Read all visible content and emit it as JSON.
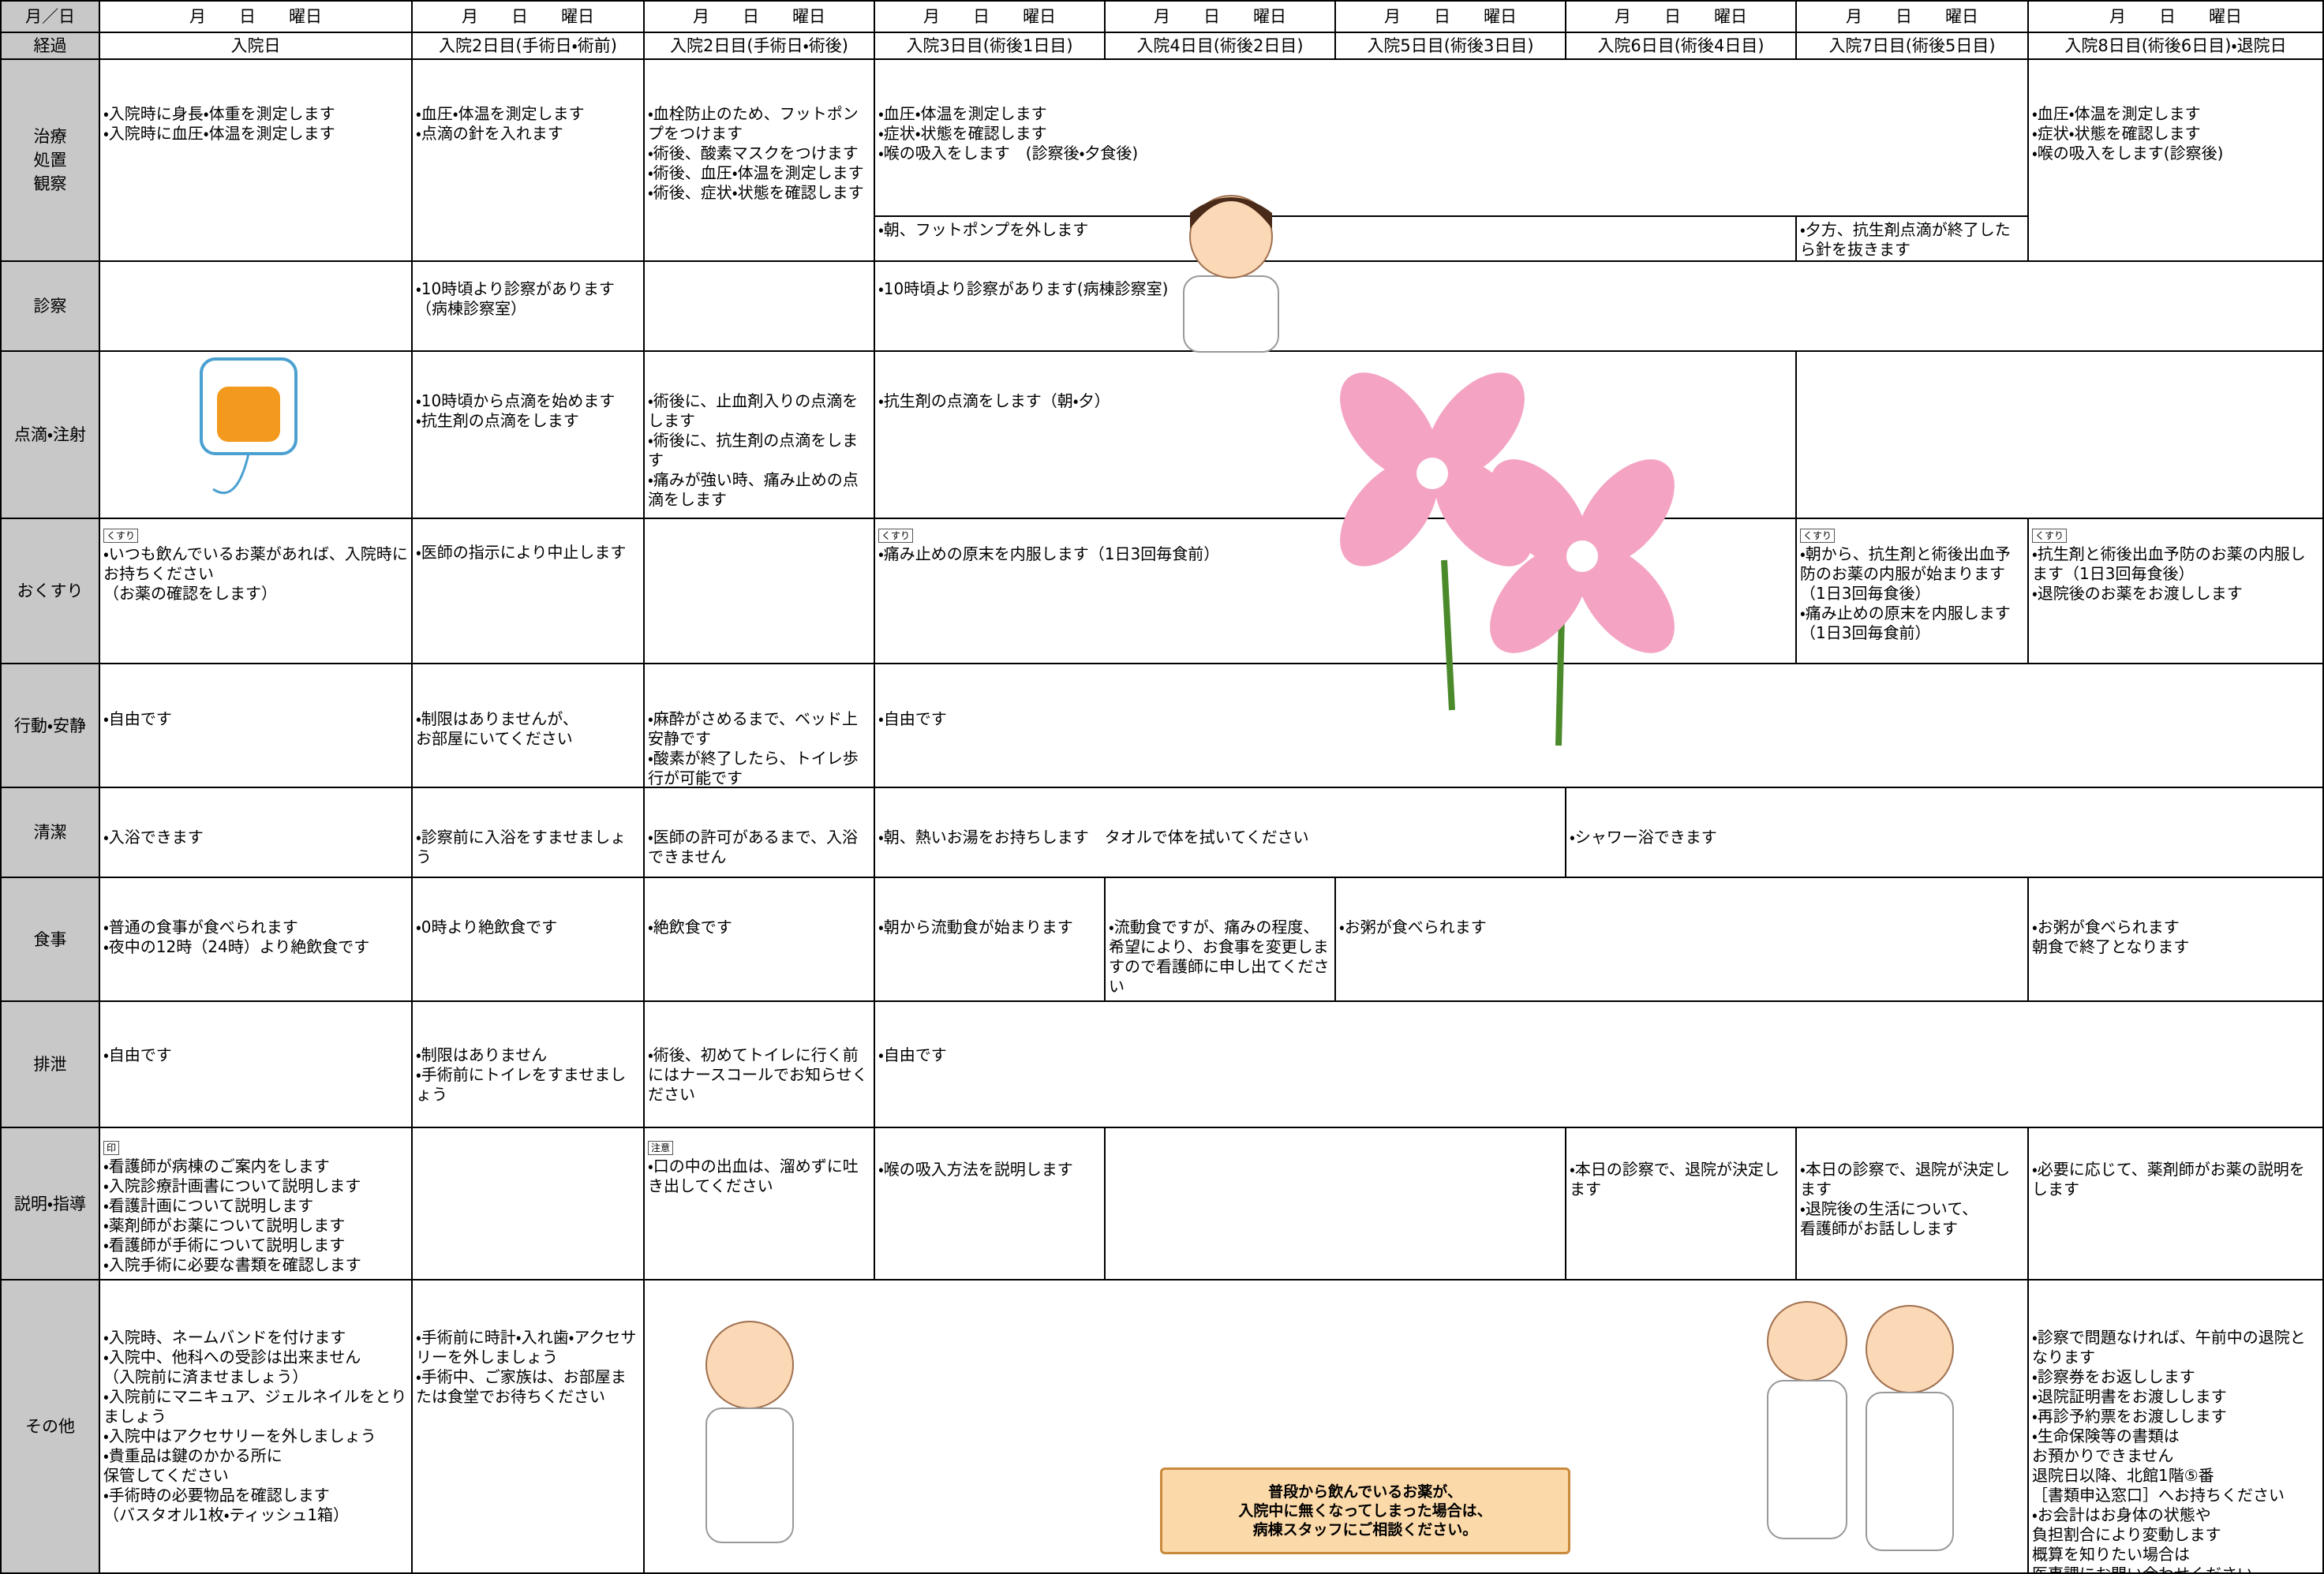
{
  "header": {
    "corner": "月／日",
    "dates": [
      "月　　日　　曜日",
      "月　　日　　曜日",
      "月　　日　　曜日",
      "月　　日　　曜日",
      "月　　日　　曜日",
      "月　　日　　曜日",
      "月　　日　　曜日",
      "月　　日　　曜日",
      "月　　日　　曜日"
    ],
    "progress_label": "経過",
    "days": [
      "入院日",
      "入院2日目(手術日・術前)",
      "入院2日目(手術日・術後)",
      "入院3日目(術後1日目)",
      "入院4日目(術後2日目)",
      "入院5日目(術後3日目)",
      "入院6日目(術後4日目)",
      "入院7日目(術後5日目)",
      "入院8日目(術後6日目)・退院日"
    ]
  },
  "rows": [
    {
      "label": "治療\n処置\n観察",
      "cells": [
        {
          "items": [
            "・入院時に身長・体重を測定します",
            "・入院時に血圧・体温を測定します"
          ]
        },
        {
          "items": [
            "・血圧・体温を測定します",
            "・点滴の針を入れます"
          ]
        },
        {
          "items": [
            "・血栓防止のため、フットポンプをつけます",
            "・術後、酸素マスクをつけます",
            "・術後、血圧・体温を測定します",
            "・術後、症状・状態を確認します"
          ]
        },
        {
          "items": [
            "・血圧・体温を測定します",
            "・症状・状態を確認します",
            "・喉の吸入をします　(診察後・夕食後)"
          ]
        },
        {
          "items": [
            "・朝、フットポンプを外します"
          ]
        },
        {
          "items": [
            "・夕方、抗生剤点滴が終了したら針を抜きます"
          ]
        },
        {
          "items": [
            "・血圧・体温を測定します",
            "・症状・状態を確認します",
            "・喉の吸入をします(診察後)"
          ]
        }
      ]
    },
    {
      "label": "診察",
      "cells": [
        {
          "items": []
        },
        {
          "items": [
            "・10時頃より診察があります",
            "（病棟診察室）"
          ]
        },
        {
          "items": []
        },
        {
          "items": [
            "・10時頃より診察があります(病棟診察室)"
          ]
        }
      ]
    },
    {
      "label": "点滴・注射",
      "cells": [
        {
          "items": []
        },
        {
          "items": [
            "・10時頃から点滴を始めます",
            "・抗生剤の点滴をします"
          ]
        },
        {
          "items": [
            "・術後に、止血剤入りの点滴をします",
            "・術後に、抗生剤の点滴をします",
            "・痛みが強い時、痛み止めの点滴をします"
          ]
        },
        {
          "items": [
            "・抗生剤の点滴をします（朝・夕）"
          ]
        },
        {
          "items": []
        }
      ]
    },
    {
      "label": "おくすり",
      "cells": [
        {
          "icon_label": "くすり",
          "items": [
            "・いつも飲んでいるお薬があれば、入院時にお持ちください",
            "（お薬の確認をします）"
          ]
        },
        {
          "items": [
            "・医師の指示により中止します"
          ]
        },
        {
          "items": []
        },
        {
          "icon_label": "くすり",
          "items": [
            "・痛み止めの原末を内服します（1日3回毎食前）"
          ]
        },
        {
          "icon_label": "くすり",
          "items": [
            "・朝から、抗生剤と術後出血予防のお薬の内服が始まります（1日3回毎食後）",
            "・痛み止めの原末を内服します（1日3回毎食前）"
          ]
        },
        {
          "icon_label": "くすり",
          "items": [
            "・抗生剤と術後出血予防のお薬の内服します（1日3回毎食後）",
            "・退院後のお薬をお渡しします"
          ]
        }
      ]
    },
    {
      "label": "行動・安静",
      "cells": [
        {
          "items": [
            "・自由です"
          ]
        },
        {
          "items": [
            "・制限はありませんが、",
            "お部屋にいてください"
          ]
        },
        {
          "items": [
            "・麻酔がさめるまで、ベッド上安静です",
            "・酸素が終了したら、トイレ歩行が可能です"
          ]
        },
        {
          "items": [
            "・自由です"
          ]
        }
      ]
    },
    {
      "label": "清潔",
      "cells": [
        {
          "items": [
            "・入浴できます"
          ]
        },
        {
          "items": [
            "・診察前に入浴をすませましょう"
          ]
        },
        {
          "items": [
            "・医師の許可があるまで、入浴できません"
          ]
        },
        {
          "items": [
            "・朝、熱いお湯をお持ちします　タオルで体を拭いてください"
          ]
        },
        {
          "items": [
            "・シャワー浴できます"
          ]
        }
      ]
    },
    {
      "label": "食事",
      "cells": [
        {
          "items": [
            "・普通の食事が食べられます",
            "・夜中の12時（24時）より絶飲食です"
          ]
        },
        {
          "items": [
            "・0時より絶飲食です"
          ]
        },
        {
          "items": [
            "・絶飲食です"
          ]
        },
        {
          "items": [
            "・朝から流動食が始まります"
          ]
        },
        {
          "items": [
            "・流動食ですが、痛みの程度、希望により、お食事を変更しますので看護師に申し出てください"
          ]
        },
        {
          "items": [
            "・お粥が食べられます"
          ]
        },
        {
          "items": [
            "・お粥が食べられます",
            "朝食で終了となります"
          ]
        }
      ]
    },
    {
      "label": "排泄",
      "cells": [
        {
          "items": [
            "・自由です"
          ]
        },
        {
          "items": [
            "・制限はありません",
            "・手術前にトイレをすませましょう"
          ]
        },
        {
          "items": [
            "・術後、初めてトイレに行く前にはナースコールでお知らせください"
          ]
        },
        {
          "items": [
            "・自由です"
          ]
        }
      ]
    },
    {
      "label": "説明・指導",
      "cells": [
        {
          "icon_label": "印",
          "items": [
            "・看護師が病棟のご案内をします",
            "・入院診療計画書について説明します",
            "・看護計画について説明します",
            "・薬剤師がお薬について説明します",
            "・看護師が手術について説明します",
            "・入院手術に必要な書類を確認します"
          ]
        },
        {
          "items": []
        },
        {
          "icon_label": "注意",
          "items": [
            "・口の中の出血は、溜めずに吐き出してください"
          ]
        },
        {
          "items": [
            "・喉の吸入方法を説明します"
          ]
        },
        {
          "items": []
        },
        {
          "items": [
            "・本日の診察で、退院が決定します"
          ]
        },
        {
          "items": [
            "・本日の診察で、退院が決定します",
            "・退院後の生活について、",
            "看護師がお話しします"
          ]
        },
        {
          "items": [
            "・必要に応じて、薬剤師がお薬の説明をします"
          ]
        }
      ]
    },
    {
      "label": "その他",
      "cells": [
        {
          "items": [
            "・入院時、ネームバンドを付けます",
            "・入院中、他科への受診は出来ません",
            "（入院前に済ませましょう）",
            "・入院前にマニキュア、ジェルネイルをとりましょう",
            "・入院中はアクセサリーを外しましょう",
            "・貴重品は鍵のかかる所に",
            "保管してください",
            "・手術時の必要物品を確認します",
            "（バスタオル1枚・ティッシュ1箱）"
          ]
        },
        {
          "items": [
            "・手術前に時計・入れ歯・アクセサリーを外しましょう",
            "・手術中、ご家族は、お部屋または食堂でお待ちください"
          ]
        },
        {
          "items": []
        },
        {
          "items": [
            "・診察で問題なければ、午前中の退院となります",
            "・診察券をお返しします",
            "・退院証明書をお渡しします",
            "・再診予約票をお渡しします",
            "・生命保険等の書類は",
            "お預かりできません",
            "退院日以降、北館1階⑤番",
            "［書類申込窓口］へお持ちください",
            "・お会計はお身体の状態や",
            "負担割合により変動します",
            "概算を知りたい場合は",
            "医事課にお問い合わせください"
          ]
        }
      ]
    }
  ],
  "note": "普段から飲んでいるお薬が、\n入院中に無くなってしまった場合は、\n病棟スタッフにご相談ください。"
}
